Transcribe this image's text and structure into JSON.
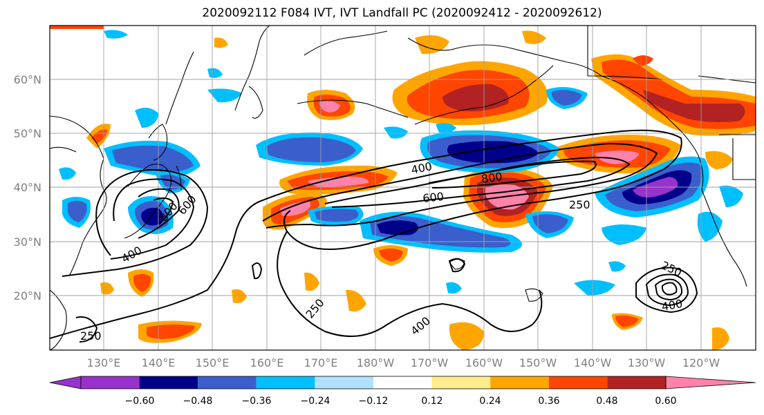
{
  "title": "2020092112 F084 IVT, IVT Landfall PC (2020092412 - 2020092612)",
  "lat_labels": [
    "60°N",
    "50°N",
    "40°N",
    "30°N",
    "20°N"
  ],
  "lon_labels": [
    "130°E",
    "140°E",
    "150°E",
    "160°E",
    "170°E",
    "180°W",
    "170°W",
    "160°W",
    "150°W",
    "140°W",
    "130°W",
    "120°W"
  ],
  "colorbar": {
    "tick_labels": [
      "−0.60",
      "−0.48",
      "−0.36",
      "−0.24",
      "−0.12",
      "0.12",
      "0.24",
      "0.36",
      "0.48",
      "0.60"
    ],
    "colors": [
      "#9932cc",
      "#00008b",
      "#3a5fcd",
      "#00bfff",
      "#b0e2ff",
      "#ffffff",
      "#ffec8b",
      "#ffa500",
      "#ff4500",
      "#b22222",
      "#ff82ab"
    ]
  },
  "contour_labels": [
    "400",
    "800",
    "600",
    "250",
    "800",
    "600",
    "400",
    "250",
    "250",
    "400",
    "250",
    "400"
  ]
}
